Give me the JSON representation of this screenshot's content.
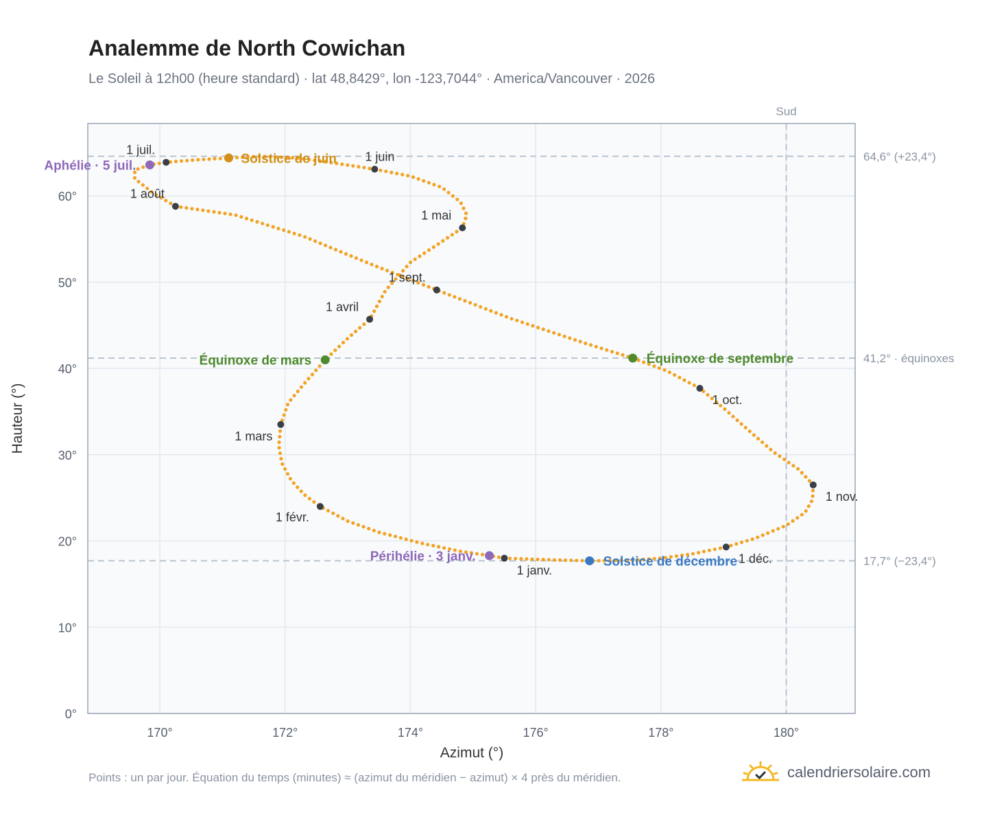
{
  "chart_data": {
    "type": "scatter",
    "title": "Analemme de North Cowichan",
    "subtitle": "Le Soleil à 12h00 (heure standard) · lat 48,8429°, lon -123,7044° · America/Vancouver · 2026",
    "xlabel": "Azimut (°)",
    "ylabel": "Hauteur (°)",
    "xlim": [
      168.85,
      181.1
    ],
    "ylim": [
      0,
      68.4
    ],
    "xticks": [
      170,
      172,
      174,
      176,
      178,
      180
    ],
    "xtick_labels": [
      "170°",
      "172°",
      "174°",
      "176°",
      "178°",
      "180°"
    ],
    "yticks": [
      0,
      10,
      20,
      30,
      40,
      50,
      60
    ],
    "ytick_labels": [
      "0°",
      "10°",
      "20°",
      "30°",
      "40°",
      "50°",
      "60°"
    ],
    "grid": true,
    "south_line": {
      "x": 180,
      "label": "Sud"
    },
    "reference_lines": [
      {
        "y": 64.6,
        "label": "64,6° (+23,4°)"
      },
      {
        "y": 41.2,
        "label": "41,2° · équinoxes"
      },
      {
        "y": 17.7,
        "label": "17,7° (−23,4°)"
      }
    ],
    "analemma_path": [
      [
        175.5,
        18.0
      ],
      [
        175.9,
        17.9
      ],
      [
        176.3,
        17.8
      ],
      [
        176.6,
        17.75
      ],
      [
        176.86,
        17.7
      ],
      [
        177.2,
        17.72
      ],
      [
        177.6,
        17.8
      ],
      [
        178.0,
        18.0
      ],
      [
        178.5,
        18.5
      ],
      [
        179.04,
        19.3
      ],
      [
        179.5,
        20.3
      ],
      [
        180.0,
        21.8
      ],
      [
        180.3,
        23.3
      ],
      [
        180.42,
        24.8
      ],
      [
        180.43,
        26.5
      ],
      [
        180.2,
        28.3
      ],
      [
        179.8,
        30.3
      ],
      [
        179.45,
        32.5
      ],
      [
        179.0,
        35.4
      ],
      [
        178.62,
        37.7
      ],
      [
        178.1,
        39.7
      ],
      [
        177.55,
        41.2
      ],
      [
        176.8,
        42.9
      ],
      [
        175.6,
        45.8
      ],
      [
        174.42,
        49.1
      ],
      [
        173.4,
        52.0
      ],
      [
        172.3,
        55.3
      ],
      [
        171.2,
        57.8
      ],
      [
        170.25,
        58.8
      ],
      [
        169.9,
        60.3
      ],
      [
        169.6,
        62.0
      ],
      [
        169.6,
        63.0
      ],
      [
        169.84,
        63.6
      ],
      [
        170.1,
        63.9
      ],
      [
        170.6,
        64.2
      ],
      [
        171.1,
        64.4
      ],
      [
        171.6,
        64.6
      ],
      [
        172.2,
        64.4
      ],
      [
        172.8,
        63.8
      ],
      [
        173.43,
        63.1
      ],
      [
        174.0,
        62.3
      ],
      [
        174.5,
        61.0
      ],
      [
        174.8,
        59.3
      ],
      [
        174.9,
        57.8
      ],
      [
        174.83,
        56.3
      ],
      [
        174.5,
        54.7
      ],
      [
        174.0,
        52.3
      ],
      [
        173.6,
        49.0
      ],
      [
        173.35,
        45.7
      ],
      [
        173.0,
        43.5
      ],
      [
        172.64,
        41.0
      ],
      [
        172.3,
        38.2
      ],
      [
        172.05,
        36.0
      ],
      [
        171.93,
        33.5
      ],
      [
        171.9,
        31.0
      ],
      [
        171.95,
        29.0
      ],
      [
        172.1,
        27.0
      ],
      [
        172.3,
        25.4
      ],
      [
        172.56,
        24.0
      ],
      [
        173.0,
        22.3
      ],
      [
        173.5,
        21.0
      ],
      [
        174.2,
        19.7
      ],
      [
        174.8,
        18.8
      ],
      [
        175.26,
        18.3
      ],
      [
        175.5,
        18.0
      ]
    ],
    "month_markers": [
      {
        "label": "1 janv.",
        "x": 175.5,
        "y": 18.0
      },
      {
        "label": "1 févr.",
        "x": 172.56,
        "y": 24.0
      },
      {
        "label": "1 mars",
        "x": 171.93,
        "y": 33.5
      },
      {
        "label": "1 avril",
        "x": 173.35,
        "y": 45.7
      },
      {
        "label": "1 mai",
        "x": 174.83,
        "y": 56.3
      },
      {
        "label": "1 juin",
        "x": 173.43,
        "y": 63.1
      },
      {
        "label": "1 juil.",
        "x": 170.1,
        "y": 63.9
      },
      {
        "label": "1 août",
        "x": 170.25,
        "y": 58.8
      },
      {
        "label": "1 sept.",
        "x": 174.42,
        "y": 49.1
      },
      {
        "label": "1 oct.",
        "x": 178.62,
        "y": 37.7
      },
      {
        "label": "1 nov.",
        "x": 180.43,
        "y": 26.5
      },
      {
        "label": "1 déc.",
        "x": 179.04,
        "y": 19.3
      }
    ],
    "events": [
      {
        "label": "Solstice de juin",
        "x": 171.1,
        "y": 64.4,
        "color": "#d39016"
      },
      {
        "label": "Aphélie · 5 juil.",
        "x": 169.84,
        "y": 63.6,
        "color": "#8e69b8"
      },
      {
        "label": "Équinoxe de mars",
        "x": 172.64,
        "y": 41.0,
        "color": "#4f8a2d"
      },
      {
        "label": "Équinoxe de septembre",
        "x": 177.55,
        "y": 41.2,
        "color": "#4f8a2d"
      },
      {
        "label": "Périhélie · 3 janv.",
        "x": 175.26,
        "y": 18.3,
        "color": "#8e69b8"
      },
      {
        "label": "Solstice de décembre",
        "x": 176.86,
        "y": 17.7,
        "color": "#3a78c2"
      }
    ],
    "colors": {
      "path": "#f2a324",
      "marker": "#3a3f47",
      "grid": "#e3e8ee",
      "plot_bg": "#f8fafc",
      "axis": "#9aa5b4",
      "ref_line": "#b9c4cf"
    }
  },
  "footer_note": "Points : un par jour. Équation du temps (minutes) ≈ (azimut du méridien − azimut) × 4 près du méridien.",
  "brand": {
    "name": "calendriersolaire.com",
    "icon": "sun-check-icon"
  }
}
